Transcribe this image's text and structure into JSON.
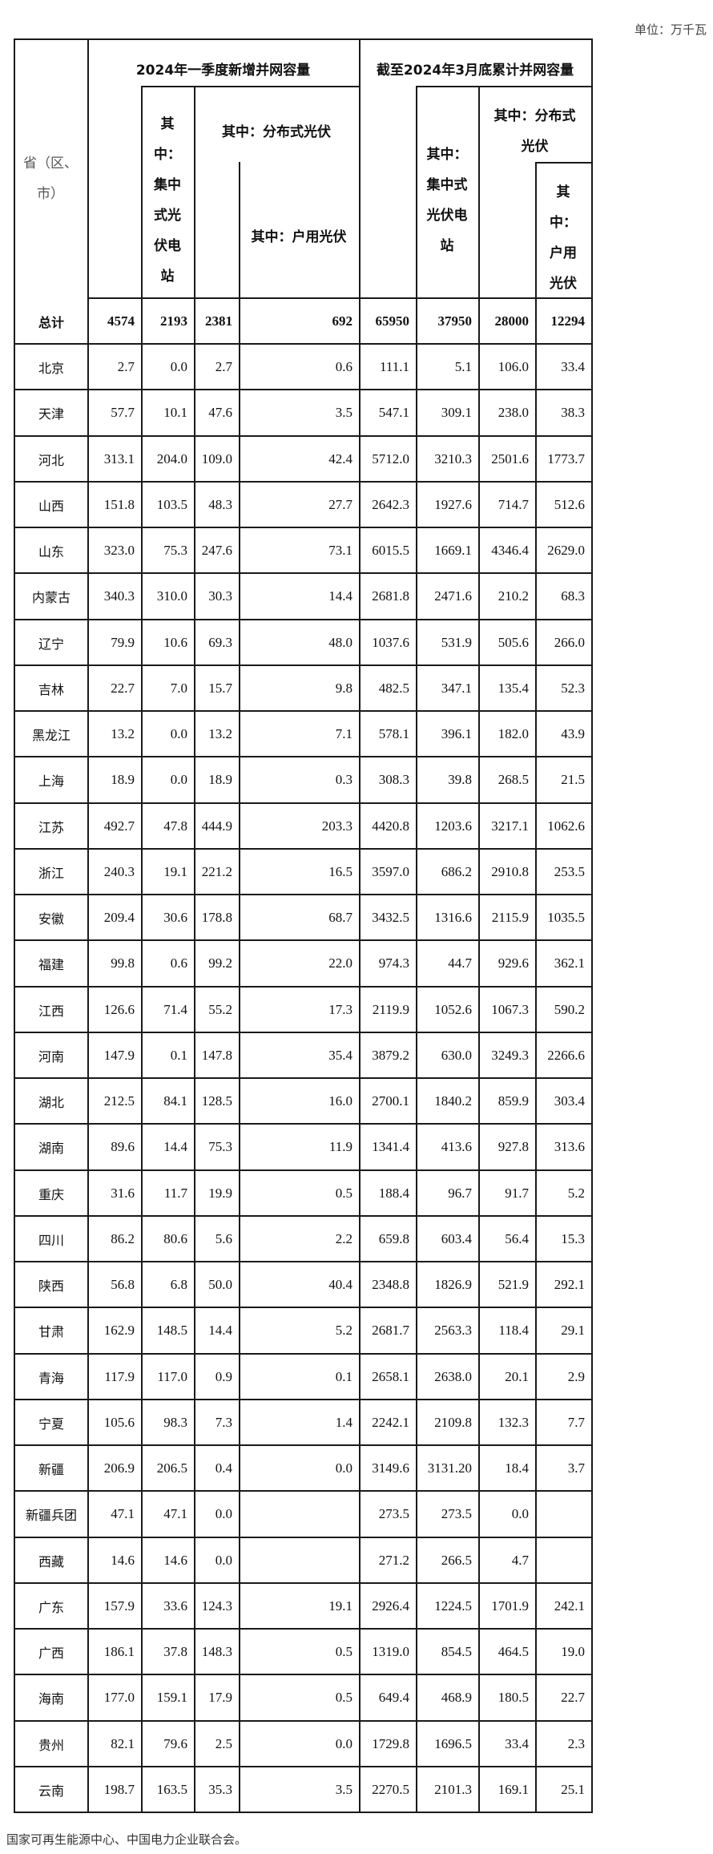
{
  "unit_label": "单位：万千瓦",
  "header": {
    "province": [
      "省（区、",
      "市）"
    ],
    "group_q1": "2024年一季度新增并网容量",
    "group_cum": "截至2024年3月底累计并网容量",
    "q1_centralized": [
      "其",
      "中：",
      "集中",
      "式光",
      "伏电",
      "站"
    ],
    "q1_distributed": "其中：分布式光伏",
    "q1_household": "其中：户用光伏",
    "cum_centralized": [
      "其中：",
      "集中式",
      "光伏电",
      "站"
    ],
    "cum_distributed": [
      "其中：分布式",
      "光伏"
    ],
    "cum_household": [
      "其",
      "中：",
      "户用",
      "光伏"
    ]
  },
  "total": {
    "label": "总计",
    "values": [
      "4574",
      "2193",
      "2381",
      "692",
      "65950",
      "37950",
      "28000",
      "12294"
    ]
  },
  "rows": [
    {
      "province": "北京",
      "values": [
        "2.7",
        "0.0",
        "2.7",
        "0.6",
        "111.1",
        "5.1",
        "106.0",
        "33.4"
      ]
    },
    {
      "province": "天津",
      "values": [
        "57.7",
        "10.1",
        "47.6",
        "3.5",
        "547.1",
        "309.1",
        "238.0",
        "38.3"
      ]
    },
    {
      "province": "河北",
      "values": [
        "313.1",
        "204.0",
        "109.0",
        "42.4",
        "5712.0",
        "3210.3",
        "2501.6",
        "1773.7"
      ]
    },
    {
      "province": "山西",
      "values": [
        "151.8",
        "103.5",
        "48.3",
        "27.7",
        "2642.3",
        "1927.6",
        "714.7",
        "512.6"
      ]
    },
    {
      "province": "山东",
      "values": [
        "323.0",
        "75.3",
        "247.6",
        "73.1",
        "6015.5",
        "1669.1",
        "4346.4",
        "2629.0"
      ]
    },
    {
      "province": "内蒙古",
      "values": [
        "340.3",
        "310.0",
        "30.3",
        "14.4",
        "2681.8",
        "2471.6",
        "210.2",
        "68.3"
      ]
    },
    {
      "province": "辽宁",
      "values": [
        "79.9",
        "10.6",
        "69.3",
        "48.0",
        "1037.6",
        "531.9",
        "505.6",
        "266.0"
      ]
    },
    {
      "province": "吉林",
      "values": [
        "22.7",
        "7.0",
        "15.7",
        "9.8",
        "482.5",
        "347.1",
        "135.4",
        "52.3"
      ]
    },
    {
      "province": "黑龙江",
      "values": [
        "13.2",
        "0.0",
        "13.2",
        "7.1",
        "578.1",
        "396.1",
        "182.0",
        "43.9"
      ]
    },
    {
      "province": "上海",
      "values": [
        "18.9",
        "0.0",
        "18.9",
        "0.3",
        "308.3",
        "39.8",
        "268.5",
        "21.5"
      ]
    },
    {
      "province": "江苏",
      "values": [
        "492.7",
        "47.8",
        "444.9",
        "203.3",
        "4420.8",
        "1203.6",
        "3217.1",
        "1062.6"
      ]
    },
    {
      "province": "浙江",
      "values": [
        "240.3",
        "19.1",
        "221.2",
        "16.5",
        "3597.0",
        "686.2",
        "2910.8",
        "253.5"
      ]
    },
    {
      "province": "安徽",
      "values": [
        "209.4",
        "30.6",
        "178.8",
        "68.7",
        "3432.5",
        "1316.6",
        "2115.9",
        "1035.5"
      ]
    },
    {
      "province": "福建",
      "values": [
        "99.8",
        "0.6",
        "99.2",
        "22.0",
        "974.3",
        "44.7",
        "929.6",
        "362.1"
      ]
    },
    {
      "province": "江西",
      "values": [
        "126.6",
        "71.4",
        "55.2",
        "17.3",
        "2119.9",
        "1052.6",
        "1067.3",
        "590.2"
      ]
    },
    {
      "province": "河南",
      "values": [
        "147.9",
        "0.1",
        "147.8",
        "35.4",
        "3879.2",
        "630.0",
        "3249.3",
        "2266.6"
      ]
    },
    {
      "province": "湖北",
      "values": [
        "212.5",
        "84.1",
        "128.5",
        "16.0",
        "2700.1",
        "1840.2",
        "859.9",
        "303.4"
      ]
    },
    {
      "province": "湖南",
      "values": [
        "89.6",
        "14.4",
        "75.3",
        "11.9",
        "1341.4",
        "413.6",
        "927.8",
        "313.6"
      ]
    },
    {
      "province": "重庆",
      "values": [
        "31.6",
        "11.7",
        "19.9",
        "0.5",
        "188.4",
        "96.7",
        "91.7",
        "5.2"
      ]
    },
    {
      "province": "四川",
      "values": [
        "86.2",
        "80.6",
        "5.6",
        "2.2",
        "659.8",
        "603.4",
        "56.4",
        "15.3"
      ]
    },
    {
      "province": "陕西",
      "values": [
        "56.8",
        "6.8",
        "50.0",
        "40.4",
        "2348.8",
        "1826.9",
        "521.9",
        "292.1"
      ]
    },
    {
      "province": "甘肃",
      "values": [
        "162.9",
        "148.5",
        "14.4",
        "5.2",
        "2681.7",
        "2563.3",
        "118.4",
        "29.1"
      ]
    },
    {
      "province": "青海",
      "values": [
        "117.9",
        "117.0",
        "0.9",
        "0.1",
        "2658.1",
        "2638.0",
        "20.1",
        "2.9"
      ]
    },
    {
      "province": "宁夏",
      "values": [
        "105.6",
        "98.3",
        "7.3",
        "1.4",
        "2242.1",
        "2109.8",
        "132.3",
        "7.7"
      ]
    },
    {
      "province": "新疆",
      "values": [
        "206.9",
        "206.5",
        "0.4",
        "0.0",
        "3149.6",
        "3131.20",
        "18.4",
        "3.7"
      ]
    },
    {
      "province": "新疆兵团",
      "values": [
        "47.1",
        "47.1",
        "0.0",
        "",
        "273.5",
        "273.5",
        "0.0",
        ""
      ]
    },
    {
      "province": "西藏",
      "values": [
        "14.6",
        "14.6",
        "0.0",
        "",
        "271.2",
        "266.5",
        "4.7",
        ""
      ]
    },
    {
      "province": "广东",
      "values": [
        "157.9",
        "33.6",
        "124.3",
        "19.1",
        "2926.4",
        "1224.5",
        "1701.9",
        "242.1"
      ]
    },
    {
      "province": "广西",
      "values": [
        "186.1",
        "37.8",
        "148.3",
        "0.5",
        "1319.0",
        "854.5",
        "464.5",
        "19.0"
      ]
    },
    {
      "province": "海南",
      "values": [
        "177.0",
        "159.1",
        "17.9",
        "0.5",
        "649.4",
        "468.9",
        "180.5",
        "22.7"
      ]
    },
    {
      "province": "贵州",
      "values": [
        "82.1",
        "79.6",
        "2.5",
        "0.0",
        "1729.8",
        "1696.5",
        "33.4",
        "2.3"
      ]
    },
    {
      "province": "云南",
      "values": [
        "198.7",
        "163.5",
        "35.3",
        "3.5",
        "2270.5",
        "2101.3",
        "169.1",
        "25.1"
      ]
    }
  ],
  "footer": "国家可再生能源中心、中国电力企业联合会。"
}
